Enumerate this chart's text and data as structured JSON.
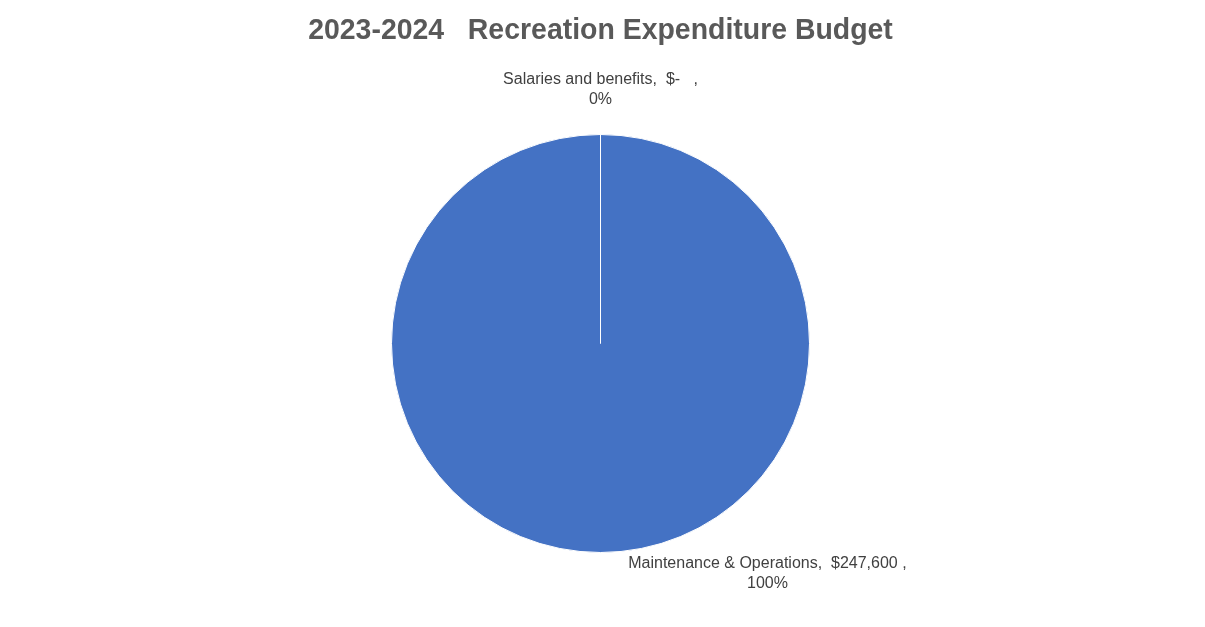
{
  "chart_data": {
    "type": "pie",
    "title": "2023-2024   Recreation Expenditure Budget",
    "categories": [
      "Salaries and benefits",
      "Maintenance & Operations"
    ],
    "values": [
      0,
      247600
    ],
    "colors": [
      "#ed7d31",
      "#4472c4"
    ],
    "value_labels": [
      ",  $-   ,\n0%",
      ",  $247,600 ,\n100%"
    ],
    "legend": false
  }
}
